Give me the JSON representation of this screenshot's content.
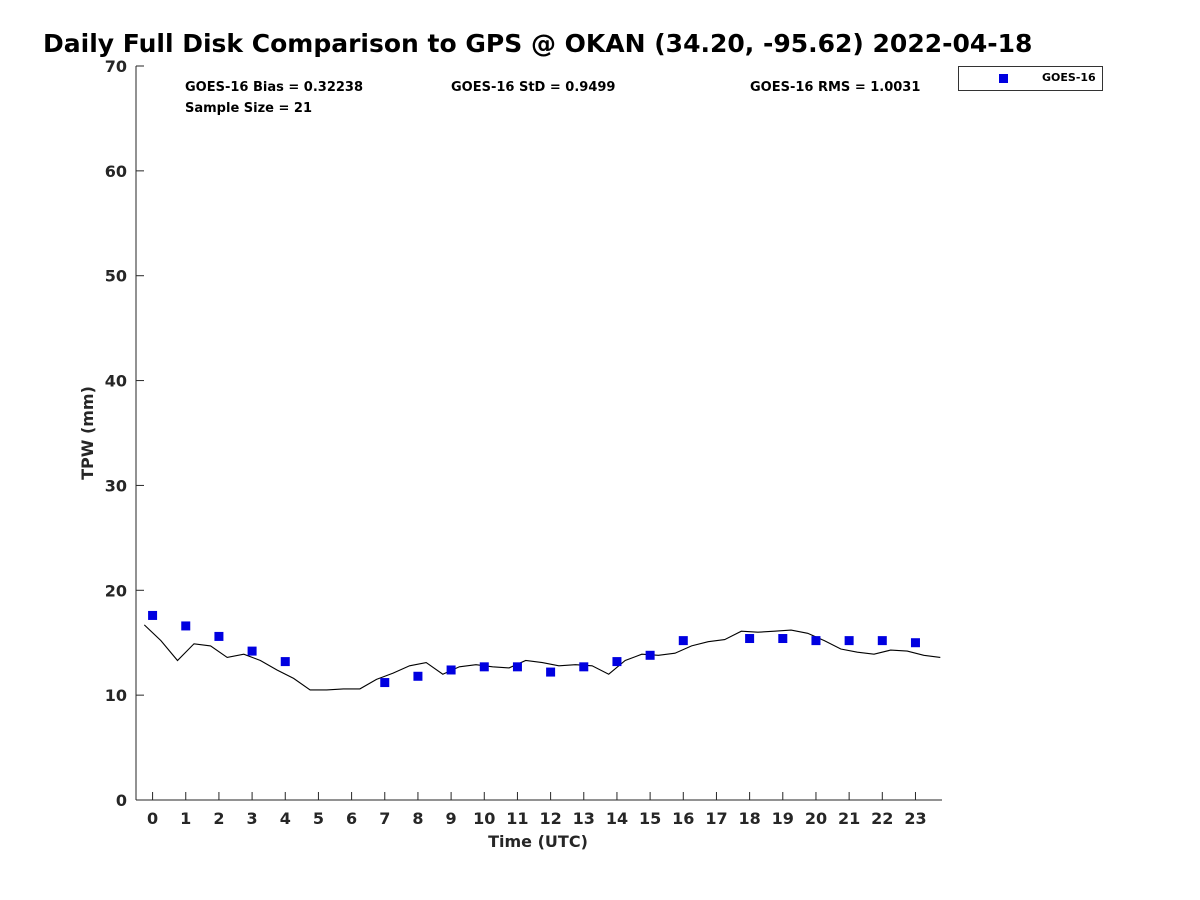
{
  "title": "Daily Full Disk Comparison to GPS @ OKAN (34.20, -95.62) 2022-04-18",
  "stats": {
    "bias": "GOES-16 Bias = 0.32238",
    "std": "GOES-16 StD = 0.9499",
    "rms": "GOES-16 RMS = 1.0031",
    "sample": "Sample Size = 21"
  },
  "legend": {
    "label": "GOES-16"
  },
  "colors": {
    "goes": "#0000e0",
    "gps_line": "#000000",
    "axis": "#262626"
  },
  "chart_data": {
    "type": "scatter",
    "title": "Daily Full Disk Comparison to GPS @ OKAN (34.20, -95.62) 2022-04-18",
    "xlabel": "Time (UTC)",
    "ylabel": "TPW (mm)",
    "xlim": [
      -0.5,
      23.8
    ],
    "ylim": [
      0,
      70
    ],
    "x_ticks": [
      0,
      1,
      2,
      3,
      4,
      5,
      6,
      7,
      8,
      9,
      10,
      11,
      12,
      13,
      14,
      15,
      16,
      17,
      18,
      19,
      20,
      21,
      22,
      23
    ],
    "y_ticks": [
      0,
      10,
      20,
      30,
      40,
      50,
      60,
      70
    ],
    "grid": false,
    "legend_position": "top-right outside",
    "series": [
      {
        "name": "GOES-16",
        "marker": "square",
        "x": [
          0,
          1,
          2,
          3,
          4,
          7,
          8,
          9,
          10,
          11,
          12,
          13,
          14,
          15,
          16,
          18,
          19,
          20,
          21,
          22,
          23
        ],
        "y": [
          17.6,
          16.6,
          15.6,
          14.2,
          13.2,
          11.2,
          11.8,
          12.4,
          12.7,
          12.7,
          12.2,
          12.7,
          13.2,
          13.8,
          15.2,
          15.4,
          15.4,
          15.2,
          15.2,
          15.2,
          15.0
        ]
      },
      {
        "marker": "line",
        "x": [
          -0.25,
          0.25,
          0.75,
          1.25,
          1.75,
          2.25,
          2.75,
          3.25,
          3.75,
          4.25,
          4.75,
          5.25,
          5.75,
          6.25,
          6.75,
          7.25,
          7.75,
          8.25,
          8.75,
          9.25,
          9.75,
          10.25,
          10.75,
          11.25,
          11.75,
          12.25,
          12.75,
          13.25,
          13.75,
          14.25,
          14.75,
          15.25,
          15.75,
          16.25,
          16.75,
          17.25,
          17.75,
          18.25,
          18.75,
          19.25,
          19.75,
          20.25,
          20.75,
          21.25,
          21.75,
          22.25,
          22.75,
          23.25,
          23.75
        ],
        "y": [
          16.7,
          15.2,
          13.3,
          14.9,
          14.7,
          13.6,
          13.9,
          13.3,
          12.4,
          11.6,
          10.5,
          10.5,
          10.6,
          10.6,
          11.5,
          12.1,
          12.8,
          13.1,
          12.0,
          12.7,
          12.9,
          12.7,
          12.6,
          13.3,
          13.1,
          12.8,
          12.9,
          12.8,
          12.0,
          13.3,
          13.9,
          13.8,
          14.0,
          14.7,
          15.1,
          15.3,
          16.1,
          16.0,
          16.1,
          16.2,
          15.9,
          15.2,
          14.4,
          14.1,
          13.9,
          14.3,
          14.2,
          13.8,
          13.6
        ]
      }
    ]
  }
}
